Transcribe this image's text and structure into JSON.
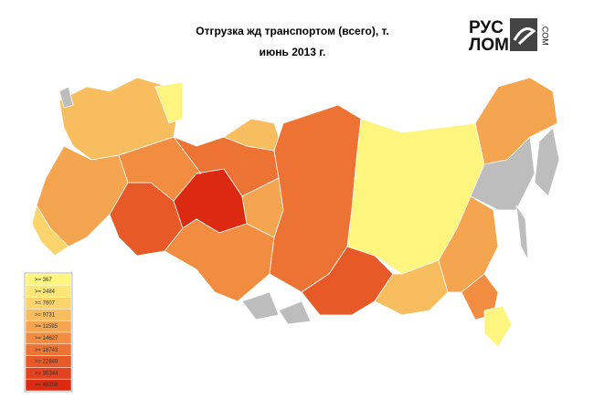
{
  "header": {
    "title": "Отгрузка жд транспортом (всего), т.",
    "subtitle": "июнь 2013 г."
  },
  "logo": {
    "line1": "РУС",
    "line2": "ЛОМ",
    "domain": ".COM"
  },
  "legend": [
    {
      "label": ">= 367",
      "color": "#fdf57e"
    },
    {
      "label": ">= 2484",
      "color": "#fce678"
    },
    {
      "label": ">= 7607",
      "color": "#fbd46c"
    },
    {
      "label": ">= 9731",
      "color": "#f8bd5e"
    },
    {
      "label": ">= 11595",
      "color": "#f5a54f"
    },
    {
      "label": ">= 14627",
      "color": "#f18c41"
    },
    {
      "label": ">= 18743",
      "color": "#ec7333"
    },
    {
      "label": ">= 22849",
      "color": "#e75a28"
    },
    {
      "label": ">= 30344",
      "color": "#e2421d"
    },
    {
      "label": ">= 48258",
      "color": "#dc2a12"
    }
  ]
}
